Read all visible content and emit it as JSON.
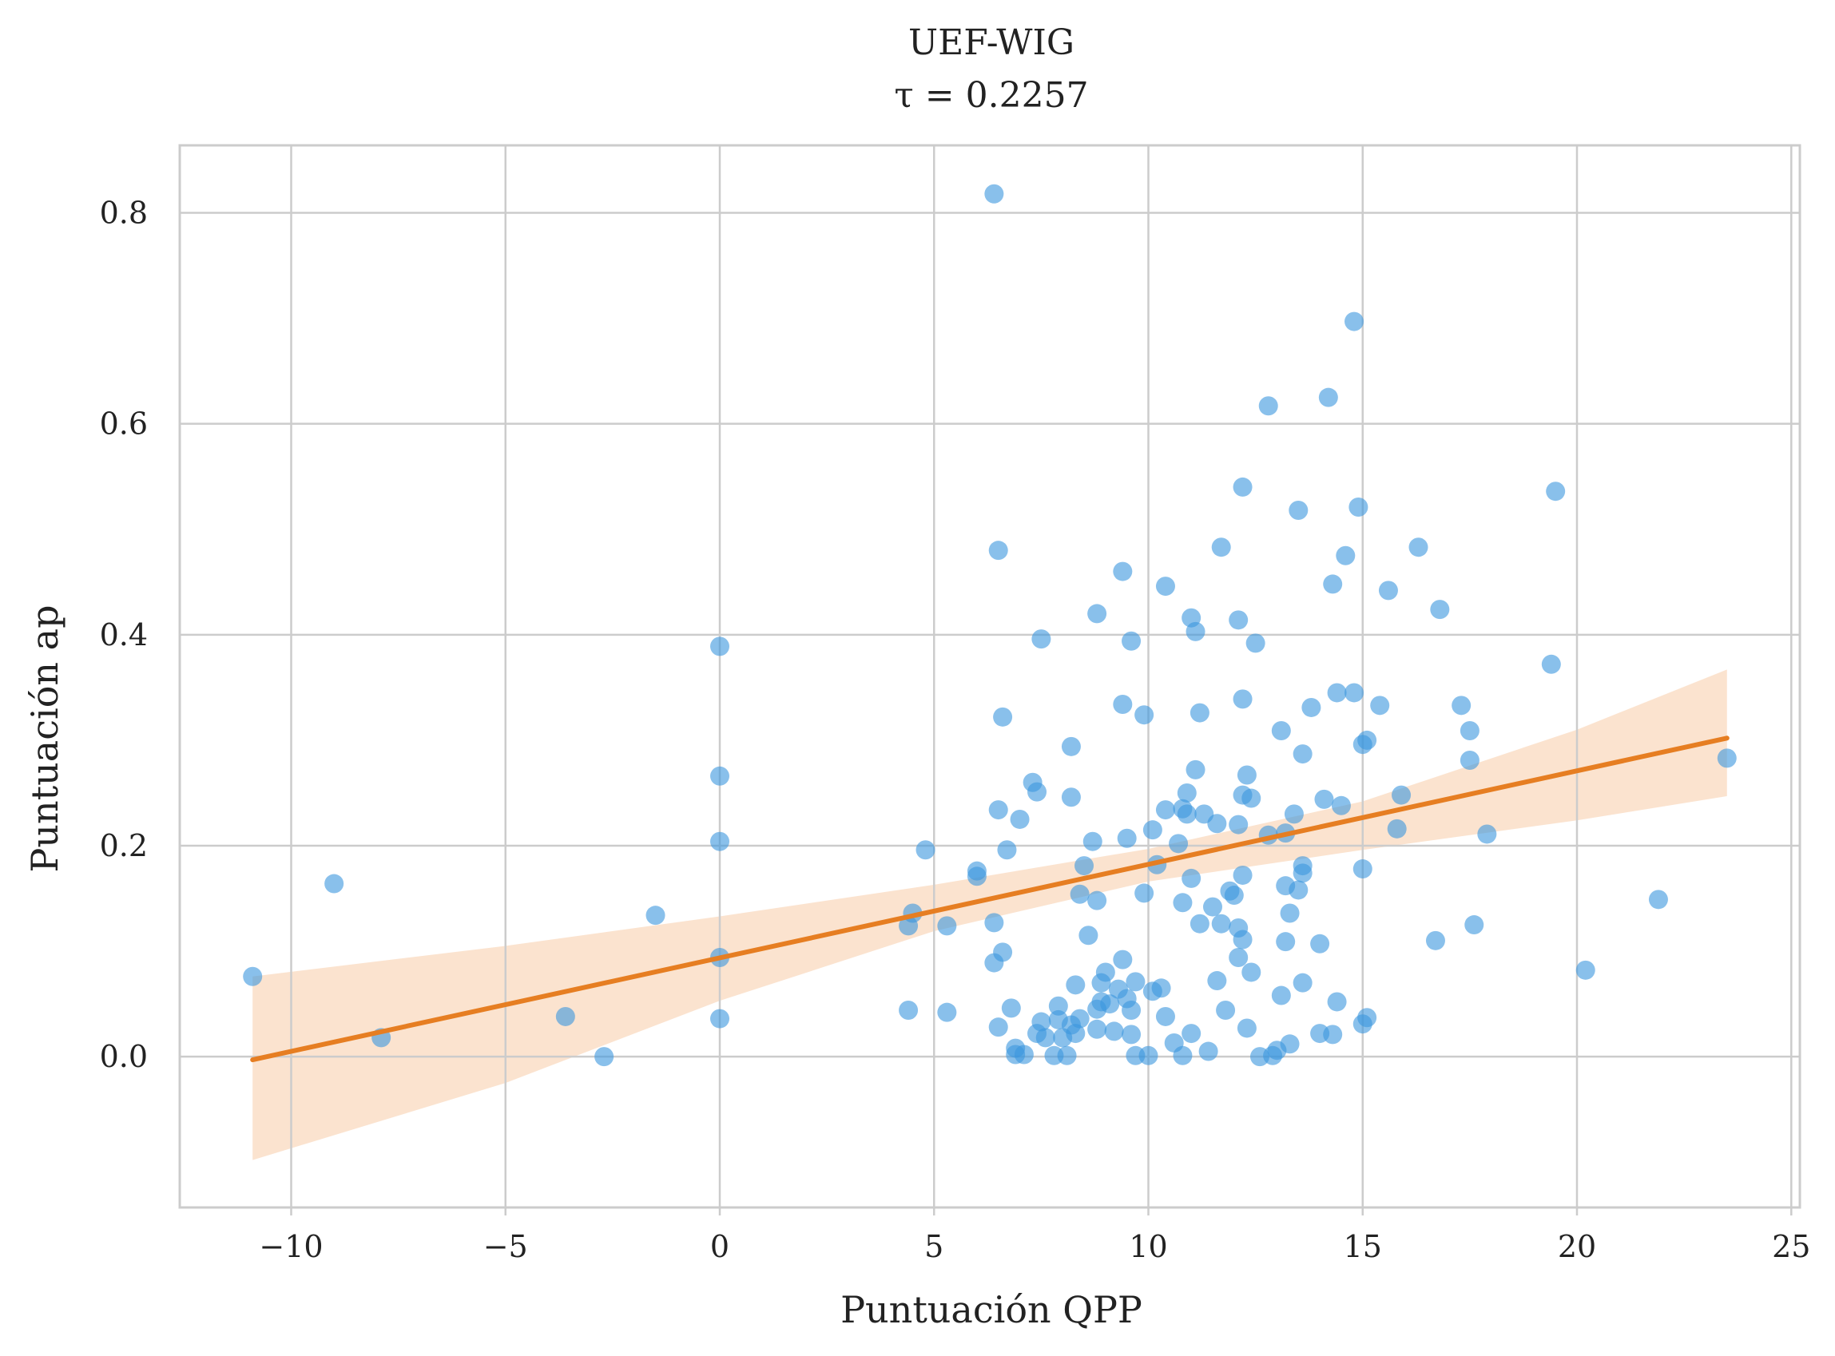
{
  "chart_data": {
    "type": "scatter",
    "title": "UEF-WIG",
    "subtitle": "τ = 0.2257",
    "xlabel": "Puntuación QPP",
    "ylabel": "Puntuación ap",
    "xlim": [
      -12.6,
      25.2
    ],
    "ylim": [
      -0.143,
      0.864
    ],
    "xticks": [
      -10,
      -5,
      0,
      5,
      10,
      15,
      20,
      25
    ],
    "xtick_labels": [
      "−10",
      "−5",
      "0",
      "5",
      "10",
      "15",
      "20",
      "25"
    ],
    "yticks": [
      0.0,
      0.2,
      0.4,
      0.6,
      0.8
    ],
    "ytick_labels": [
      "0.0",
      "0.2",
      "0.4",
      "0.6",
      "0.8"
    ],
    "grid": true,
    "colors": {
      "points": "#3a96dd",
      "regression": "#e67e22",
      "band": "#f9d9bf",
      "grid": "#cccccc",
      "frame": "#cccccc"
    },
    "points": [
      [
        -10.9,
        0.076
      ],
      [
        -9.0,
        0.164
      ],
      [
        -7.9,
        0.018
      ],
      [
        -3.6,
        0.038
      ],
      [
        -2.7,
        0.0
      ],
      [
        -1.5,
        0.134
      ],
      [
        0.0,
        0.389
      ],
      [
        0.0,
        0.266
      ],
      [
        0.0,
        0.204
      ],
      [
        0.0,
        0.094
      ],
      [
        0.0,
        0.036
      ],
      [
        4.4,
        0.044
      ],
      [
        4.4,
        0.124
      ],
      [
        4.5,
        0.136
      ],
      [
        4.8,
        0.196
      ],
      [
        5.3,
        0.042
      ],
      [
        5.3,
        0.124
      ],
      [
        6.0,
        0.176
      ],
      [
        6.0,
        0.171
      ],
      [
        6.4,
        0.818
      ],
      [
        6.5,
        0.48
      ],
      [
        6.6,
        0.322
      ],
      [
        6.5,
        0.234
      ],
      [
        6.7,
        0.196
      ],
      [
        6.4,
        0.127
      ],
      [
        6.6,
        0.099
      ],
      [
        6.4,
        0.089
      ],
      [
        6.5,
        0.028
      ],
      [
        6.8,
        0.046
      ],
      [
        6.9,
        0.008
      ],
      [
        6.9,
        0.002
      ],
      [
        7.0,
        0.225
      ],
      [
        7.1,
        0.002
      ],
      [
        7.3,
        0.26
      ],
      [
        7.4,
        0.251
      ],
      [
        7.5,
        0.396
      ],
      [
        7.4,
        0.022
      ],
      [
        7.5,
        0.033
      ],
      [
        7.6,
        0.018
      ],
      [
        7.8,
        0.001
      ],
      [
        7.9,
        0.035
      ],
      [
        7.9,
        0.048
      ],
      [
        8.0,
        0.018
      ],
      [
        8.1,
        0.001
      ],
      [
        8.2,
        0.294
      ],
      [
        8.2,
        0.246
      ],
      [
        8.2,
        0.03
      ],
      [
        8.3,
        0.022
      ],
      [
        8.3,
        0.068
      ],
      [
        8.4,
        0.036
      ],
      [
        8.4,
        0.154
      ],
      [
        8.5,
        0.181
      ],
      [
        8.6,
        0.115
      ],
      [
        8.7,
        0.204
      ],
      [
        8.8,
        0.42
      ],
      [
        8.8,
        0.148
      ],
      [
        8.8,
        0.026
      ],
      [
        8.8,
        0.045
      ],
      [
        8.9,
        0.052
      ],
      [
        8.9,
        0.07
      ],
      [
        9.0,
        0.08
      ],
      [
        9.1,
        0.05
      ],
      [
        9.2,
        0.024
      ],
      [
        9.3,
        0.064
      ],
      [
        9.4,
        0.46
      ],
      [
        9.4,
        0.334
      ],
      [
        9.4,
        0.092
      ],
      [
        9.5,
        0.207
      ],
      [
        9.5,
        0.055
      ],
      [
        9.6,
        0.394
      ],
      [
        9.6,
        0.021
      ],
      [
        9.6,
        0.044
      ],
      [
        9.7,
        0.071
      ],
      [
        9.7,
        0.001
      ],
      [
        9.9,
        0.324
      ],
      [
        9.9,
        0.155
      ],
      [
        10.0,
        0.001
      ],
      [
        10.1,
        0.215
      ],
      [
        10.1,
        0.062
      ],
      [
        10.2,
        0.182
      ],
      [
        10.3,
        0.065
      ],
      [
        10.4,
        0.446
      ],
      [
        10.4,
        0.234
      ],
      [
        10.4,
        0.038
      ],
      [
        10.6,
        0.013
      ],
      [
        10.7,
        0.202
      ],
      [
        10.8,
        0.146
      ],
      [
        10.8,
        0.235
      ],
      [
        10.8,
        0.001
      ],
      [
        10.9,
        0.25
      ],
      [
        10.9,
        0.23
      ],
      [
        11.0,
        0.416
      ],
      [
        11.0,
        0.169
      ],
      [
        11.0,
        0.022
      ],
      [
        11.1,
        0.403
      ],
      [
        11.1,
        0.272
      ],
      [
        11.2,
        0.326
      ],
      [
        11.2,
        0.126
      ],
      [
        11.3,
        0.23
      ],
      [
        11.4,
        0.005
      ],
      [
        11.5,
        0.142
      ],
      [
        11.6,
        0.221
      ],
      [
        11.6,
        0.072
      ],
      [
        11.7,
        0.126
      ],
      [
        11.7,
        0.483
      ],
      [
        11.8,
        0.044
      ],
      [
        11.9,
        0.157
      ],
      [
        12.0,
        0.153
      ],
      [
        12.1,
        0.414
      ],
      [
        12.1,
        0.122
      ],
      [
        12.1,
        0.094
      ],
      [
        12.1,
        0.22
      ],
      [
        12.2,
        0.248
      ],
      [
        12.2,
        0.111
      ],
      [
        12.2,
        0.54
      ],
      [
        12.2,
        0.339
      ],
      [
        12.2,
        0.172
      ],
      [
        12.3,
        0.267
      ],
      [
        12.3,
        0.027
      ],
      [
        12.4,
        0.245
      ],
      [
        12.4,
        0.08
      ],
      [
        12.5,
        0.392
      ],
      [
        12.6,
        0.0
      ],
      [
        12.8,
        0.617
      ],
      [
        12.8,
        0.21
      ],
      [
        12.9,
        0.001
      ],
      [
        13.0,
        0.006
      ],
      [
        13.1,
        0.309
      ],
      [
        13.1,
        0.058
      ],
      [
        13.2,
        0.162
      ],
      [
        13.2,
        0.109
      ],
      [
        13.2,
        0.212
      ],
      [
        13.3,
        0.136
      ],
      [
        13.3,
        0.012
      ],
      [
        13.4,
        0.23
      ],
      [
        13.5,
        0.518
      ],
      [
        13.5,
        0.158
      ],
      [
        13.6,
        0.174
      ],
      [
        13.6,
        0.181
      ],
      [
        13.6,
        0.287
      ],
      [
        13.6,
        0.07
      ],
      [
        13.8,
        0.331
      ],
      [
        14.0,
        0.022
      ],
      [
        14.0,
        0.107
      ],
      [
        14.1,
        0.244
      ],
      [
        14.2,
        0.625
      ],
      [
        14.3,
        0.448
      ],
      [
        14.3,
        0.021
      ],
      [
        14.4,
        0.345
      ],
      [
        14.4,
        0.052
      ],
      [
        14.5,
        0.238
      ],
      [
        14.6,
        0.475
      ],
      [
        14.8,
        0.697
      ],
      [
        14.8,
        0.345
      ],
      [
        14.9,
        0.521
      ],
      [
        15.0,
        0.296
      ],
      [
        15.0,
        0.178
      ],
      [
        15.0,
        0.031
      ],
      [
        15.1,
        0.037
      ],
      [
        15.1,
        0.3
      ],
      [
        15.4,
        0.333
      ],
      [
        15.6,
        0.442
      ],
      [
        15.8,
        0.216
      ],
      [
        15.9,
        0.248
      ],
      [
        16.3,
        0.483
      ],
      [
        16.7,
        0.11
      ],
      [
        16.8,
        0.424
      ],
      [
        17.3,
        0.333
      ],
      [
        17.5,
        0.309
      ],
      [
        17.5,
        0.281
      ],
      [
        17.6,
        0.125
      ],
      [
        17.9,
        0.211
      ],
      [
        19.4,
        0.372
      ],
      [
        19.5,
        0.536
      ],
      [
        20.2,
        0.082
      ],
      [
        21.9,
        0.149
      ],
      [
        23.5,
        0.283
      ]
    ],
    "regression": {
      "x": [
        -10.9,
        23.5
      ],
      "y": [
        -0.003,
        0.302
      ]
    },
    "confidence_band": {
      "x": [
        -10.9,
        -5,
        0,
        5,
        10,
        15,
        20,
        23.5
      ],
      "upper": [
        0.076,
        0.105,
        0.133,
        0.163,
        0.197,
        0.242,
        0.31,
        0.367
      ],
      "lower": [
        -0.098,
        -0.025,
        0.053,
        0.119,
        0.166,
        0.196,
        0.224,
        0.247
      ]
    }
  }
}
